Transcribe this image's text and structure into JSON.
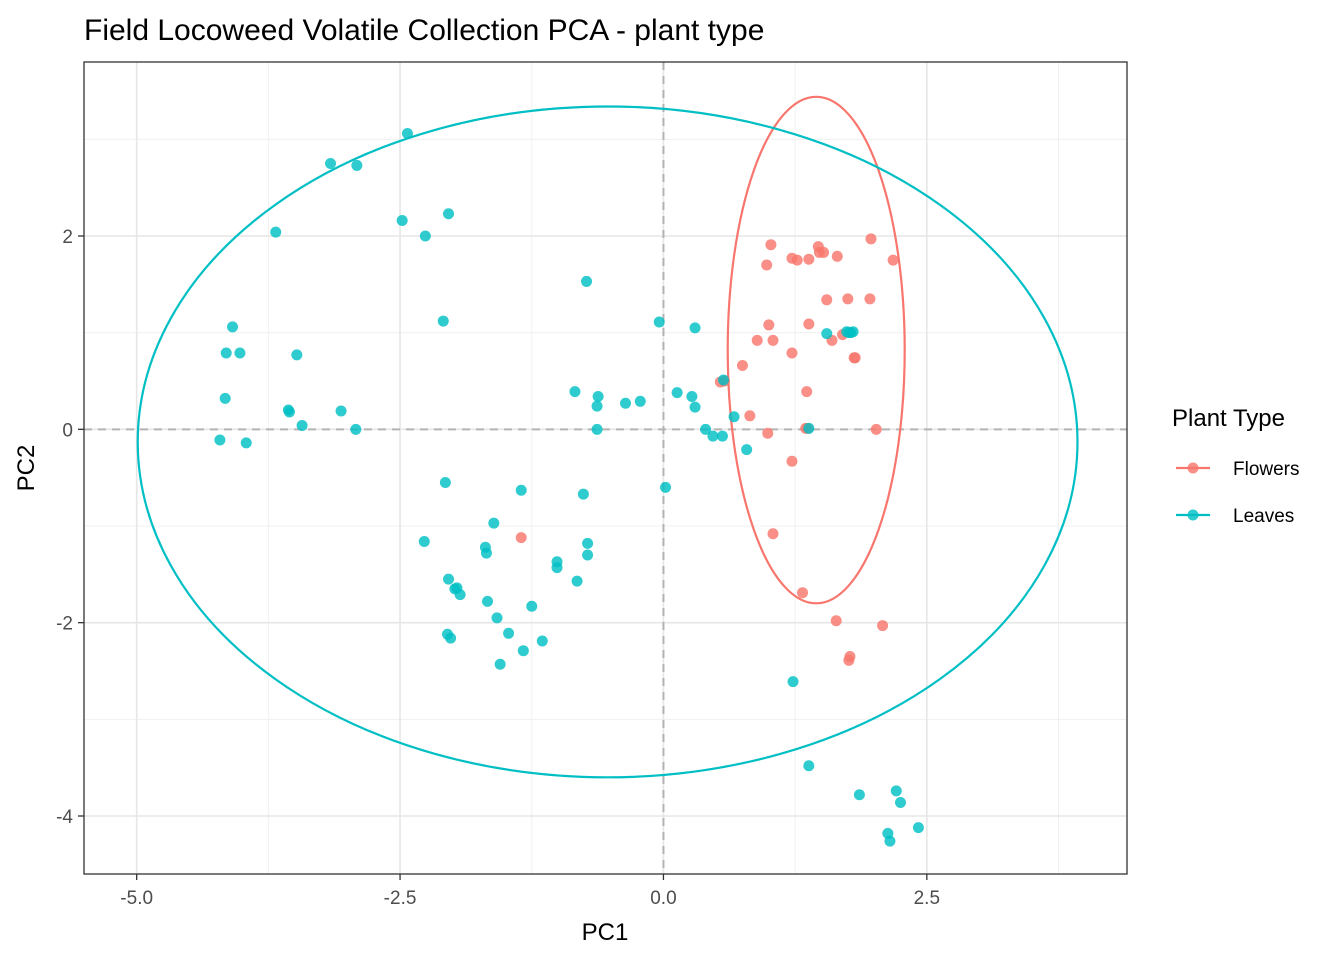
{
  "chart_data": {
    "type": "scatter",
    "title": "Field Locoweed Volatile Collection PCA - plant type",
    "xlabel": "PC1",
    "ylabel": "PC2",
    "xlim": [
      -5.5,
      4.4
    ],
    "ylim": [
      -4.6,
      3.8
    ],
    "x_ticks": [
      -5.0,
      -2.5,
      0.0,
      2.5
    ],
    "x_tick_labels": [
      "-5.0",
      "-2.5",
      "0.0",
      "2.5"
    ],
    "y_ticks": [
      -4,
      -2,
      0,
      2
    ],
    "y_tick_labels": [
      "-4",
      "-2",
      "0",
      "2"
    ],
    "grid": true,
    "reference_lines": {
      "x": 0,
      "y": 0,
      "style": "dashed"
    },
    "legend": {
      "title": "Plant Type",
      "placement": "right"
    },
    "series": [
      {
        "name": "Flowers",
        "color": "#F8766D",
        "ellipse": {
          "cx": 1.45,
          "cy": 0.82,
          "rx": 0.84,
          "ry": 2.62
        },
        "x": [
          1.02,
          1.27,
          1.47,
          1.52,
          1.65,
          1.97,
          0.98,
          1.22,
          1.38,
          1.48,
          1.55,
          2.18,
          1.6,
          1.75,
          1.96,
          1.38,
          1.0,
          1.04,
          0.89,
          1.7,
          1.81,
          1.36,
          0.75,
          1.22,
          1.82,
          0.54,
          0.58,
          1.35,
          0.82,
          1.37,
          0.99,
          2.02,
          1.22,
          1.04,
          -1.35,
          1.32,
          1.64,
          2.08,
          1.77,
          1.76
        ],
        "y": [
          1.91,
          1.75,
          1.89,
          1.83,
          1.79,
          1.97,
          1.7,
          1.77,
          1.76,
          1.83,
          1.34,
          1.75,
          0.92,
          1.35,
          1.35,
          1.09,
          1.08,
          0.92,
          0.92,
          0.98,
          0.74,
          0.39,
          0.66,
          0.79,
          0.74,
          0.49,
          0.5,
          0.01,
          0.14,
          0.01,
          -0.04,
          0.0,
          -0.33,
          -1.08,
          -1.12,
          -1.69,
          -1.98,
          -2.03,
          -2.35,
          -2.39
        ]
      },
      {
        "name": "Leaves",
        "color": "#00BFC4",
        "ellipse": {
          "cx": -0.53,
          "cy": -0.13,
          "rx": 4.46,
          "ry": 3.47
        },
        "x": [
          -2.43,
          -3.16,
          -2.91,
          -2.48,
          -2.26,
          -2.04,
          -3.68,
          -0.73,
          -4.09,
          -4.15,
          -4.02,
          -3.48,
          -2.09,
          -0.04,
          0.3,
          -4.16,
          -3.55,
          -3.56,
          -3.06,
          -3.43,
          -2.92,
          -4.21,
          -3.96,
          -0.84,
          -0.62,
          -0.63,
          -0.36,
          -0.22,
          0.13,
          0.27,
          0.3,
          0.4,
          0.47,
          0.57,
          0.56,
          0.67,
          0.79,
          -0.63,
          -2.07,
          -1.35,
          -0.76,
          0.02,
          -1.61,
          -2.27,
          -1.69,
          -1.68,
          -0.72,
          -0.72,
          -1.01,
          -1.01,
          -0.82,
          -2.04,
          -1.96,
          -1.98,
          -1.93,
          -1.67,
          -1.25,
          -1.58,
          -2.02,
          -2.05,
          -1.47,
          -1.15,
          -1.33,
          -1.55,
          1.23,
          1.38,
          1.86,
          2.21,
          2.25,
          2.13,
          2.15,
          2.42,
          1.74,
          1.76,
          1.8,
          1.78,
          1.55,
          1.38
        ],
        "y": [
          3.06,
          2.75,
          2.73,
          2.16,
          2.0,
          2.23,
          2.04,
          1.53,
          1.06,
          0.79,
          0.79,
          0.77,
          1.12,
          1.11,
          1.05,
          0.32,
          0.18,
          0.2,
          0.19,
          0.04,
          0.0,
          -0.11,
          -0.14,
          0.39,
          0.34,
          0.24,
          0.27,
          0.29,
          0.38,
          0.34,
          0.23,
          0.0,
          -0.07,
          0.51,
          -0.07,
          0.13,
          -0.21,
          0.0,
          -0.55,
          -0.63,
          -0.67,
          -0.6,
          -0.97,
          -1.16,
          -1.22,
          -1.28,
          -1.18,
          -1.3,
          -1.37,
          -1.43,
          -1.57,
          -1.55,
          -1.64,
          -1.65,
          -1.71,
          -1.78,
          -1.83,
          -1.95,
          -2.16,
          -2.12,
          -2.11,
          -2.19,
          -2.29,
          -2.43,
          -2.61,
          -3.48,
          -3.78,
          -3.74,
          -3.86,
          -4.18,
          -4.26,
          -4.12,
          1.01,
          1.0,
          1.01,
          1.0,
          0.99,
          0.01
        ]
      }
    ]
  }
}
